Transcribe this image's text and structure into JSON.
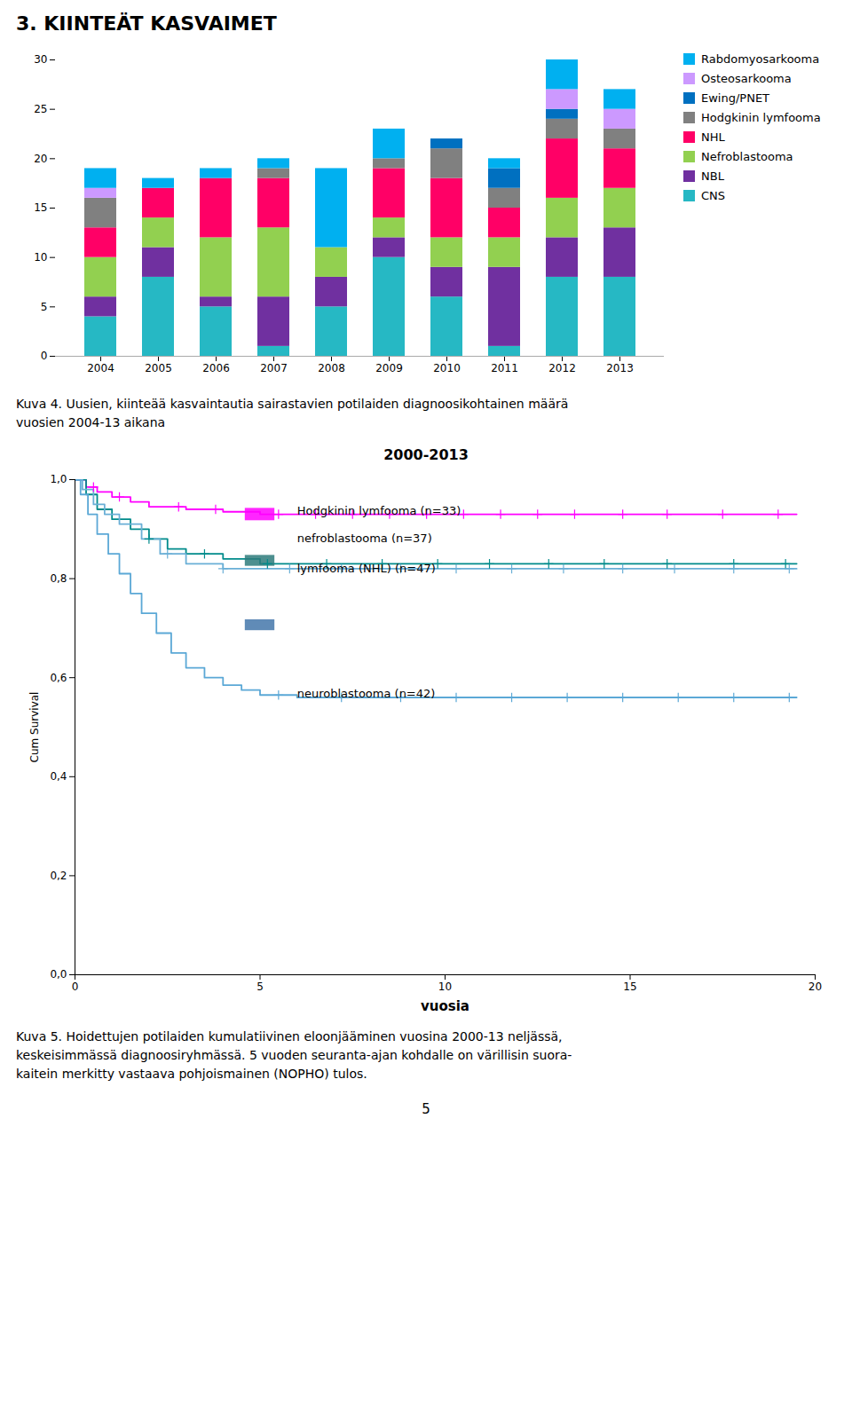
{
  "chart_data": [
    {
      "type": "bar",
      "title": "3. KIINTEÄT KASVAIMET",
      "caption": "Kuva 4. Uusien, kiinteää kasvaintautia sairastavien potilaiden diagnoosikohtainen määrä\nvuosien 2004-13 aikana",
      "stacked": true,
      "grid": false,
      "legend": "right",
      "categories": [
        "2004",
        "2005",
        "2006",
        "2007",
        "2008",
        "2009",
        "2010",
        "2011",
        "2012",
        "2013"
      ],
      "series": [
        {
          "name": "CNS",
          "color": "#26B8C4",
          "values": [
            4,
            8,
            5,
            1,
            5,
            10,
            6,
            1,
            8,
            8
          ]
        },
        {
          "name": "NBL",
          "color": "#7030A0",
          "values": [
            2,
            3,
            1,
            5,
            3,
            2,
            3,
            8,
            4,
            5
          ]
        },
        {
          "name": "Nefroblastooma",
          "color": "#92D050",
          "values": [
            4,
            3,
            6,
            7,
            3,
            2,
            3,
            3,
            4,
            4
          ]
        },
        {
          "name": "NHL",
          "color": "#FF0066",
          "values": [
            3,
            3,
            6,
            5,
            0,
            5,
            6,
            3,
            6,
            4
          ]
        },
        {
          "name": "Hodgkinin lymfooma",
          "color": "#808080",
          "values": [
            3,
            0,
            0,
            1,
            0,
            1,
            3,
            2,
            2,
            2
          ]
        },
        {
          "name": "Ewing/PNET",
          "color": "#0070C0",
          "values": [
            0,
            0,
            0,
            0,
            0,
            0,
            1,
            2,
            1,
            0
          ]
        },
        {
          "name": "Osteosarkooma",
          "color": "#CC99FF",
          "values": [
            1,
            0,
            0,
            0,
            0,
            0,
            0,
            0,
            2,
            2
          ]
        },
        {
          "name": "Rabdomyosarkooma",
          "color": "#00B0F0",
          "values": [
            2,
            1,
            1,
            1,
            8,
            3,
            0,
            1,
            3,
            2
          ]
        }
      ],
      "ylim": [
        0,
        30
      ],
      "yticks": [
        0,
        5,
        10,
        15,
        20,
        25,
        30
      ]
    },
    {
      "type": "step",
      "title": "2000-2013",
      "xlabel": "vuosia",
      "ylabel": "Cum Survival",
      "caption": "Kuva 5. Hoidettujen potilaiden kumulatiivinen eloonjääminen vuosina 2000-13 neljässä,\nkeskeisimmässä diagnoosiryhmässä. 5 vuoden seuranta-ajan kohdalle on värillisin suora-\nkaitein merkitty vastaava pohjoismainen (NOPHO) tulos.",
      "grid": false,
      "xlim": [
        0,
        20
      ],
      "xticks": [
        0,
        5,
        10,
        15,
        20
      ],
      "ylim": [
        0.0,
        1.0
      ],
      "yticks": [
        {
          "value": 0.0,
          "label": "0,0"
        },
        {
          "value": 0.2,
          "label": "0,2"
        },
        {
          "value": 0.4,
          "label": "0,4"
        },
        {
          "value": 0.6,
          "label": "0,6"
        },
        {
          "value": 0.8,
          "label": "0,8"
        },
        {
          "value": 1.0,
          "label": "1,0"
        }
      ],
      "series": [
        {
          "color": "#FF00FF",
          "x": [
            0,
            0.3,
            0.6,
            1.0,
            1.5,
            2.0,
            3.0,
            4.0,
            5.0,
            7.0,
            10.0,
            13.0,
            16.0,
            19.5
          ],
          "values": [
            1.0,
            0.985,
            0.975,
            0.965,
            0.955,
            0.945,
            0.94,
            0.935,
            0.93,
            0.93,
            0.93,
            0.93,
            0.93,
            0.93
          ],
          "censored": {
            "x": [
              0.5,
              1.2,
              2.8,
              3.8,
              5.5,
              6.5,
              7.5,
              8.5,
              9.5,
              10.5,
              11.5,
              12.5,
              13.5,
              14.8,
              16.0,
              17.5,
              19.0
            ],
            "values": [
              0.985,
              0.965,
              0.945,
              0.94,
              0.93,
              0.93,
              0.93,
              0.93,
              0.93,
              0.93,
              0.93,
              0.93,
              0.93,
              0.93,
              0.93,
              0.93,
              0.93
            ]
          }
        },
        {
          "color": "#008B8B",
          "x": [
            0,
            0.3,
            0.6,
            1.0,
            1.5,
            2.0,
            2.5,
            3.0,
            4.0,
            5.0,
            7.0,
            10.0,
            14.0,
            19.5
          ],
          "values": [
            1.0,
            0.97,
            0.94,
            0.92,
            0.9,
            0.88,
            0.86,
            0.85,
            0.84,
            0.83,
            0.83,
            0.83,
            0.83,
            0.83
          ],
          "censored": {
            "x": [
              2.0,
              3.5,
              5.2,
              6.8,
              8.3,
              9.8,
              11.2,
              12.8,
              14.3,
              16.0,
              17.8,
              19.2
            ],
            "values": [
              0.88,
              0.85,
              0.83,
              0.83,
              0.83,
              0.83,
              0.83,
              0.83,
              0.83,
              0.83,
              0.83,
              0.83
            ]
          }
        },
        {
          "color": "#6AAFD6",
          "x": [
            0,
            0.2,
            0.5,
            0.8,
            1.2,
            1.8,
            2.3,
            3.0,
            4.0,
            5.0,
            7.0,
            10.0,
            14.0,
            19.5
          ],
          "values": [
            1.0,
            0.98,
            0.95,
            0.93,
            0.91,
            0.88,
            0.85,
            0.83,
            0.82,
            0.82,
            0.82,
            0.82,
            0.82,
            0.82
          ],
          "censored": {
            "x": [
              2.5,
              4.0,
              5.8,
              7.2,
              8.8,
              10.3,
              11.8,
              13.2,
              14.8,
              16.2,
              17.8,
              19.3
            ],
            "values": [
              0.85,
              0.82,
              0.82,
              0.82,
              0.82,
              0.82,
              0.82,
              0.82,
              0.82,
              0.82,
              0.82,
              0.82
            ]
          }
        },
        {
          "color": "#5BA8D6",
          "x": [
            0,
            0.15,
            0.35,
            0.6,
            0.9,
            1.2,
            1.5,
            1.8,
            2.2,
            2.6,
            3.0,
            3.5,
            4.0,
            4.5,
            5.0,
            6.0,
            7.0,
            8.5,
            10.0,
            13.0,
            17.0,
            19.5
          ],
          "values": [
            1.0,
            0.97,
            0.93,
            0.89,
            0.85,
            0.81,
            0.77,
            0.73,
            0.69,
            0.65,
            0.62,
            0.6,
            0.585,
            0.575,
            0.565,
            0.56,
            0.56,
            0.56,
            0.56,
            0.56,
            0.56,
            0.56
          ],
          "censored": {
            "x": [
              5.5,
              7.2,
              8.8,
              10.3,
              11.8,
              13.3,
              14.8,
              16.3,
              17.8,
              19.3
            ],
            "values": [
              0.565,
              0.56,
              0.56,
              0.56,
              0.56,
              0.56,
              0.56,
              0.56,
              0.56,
              0.56
            ]
          }
        }
      ],
      "reference_boxes": [
        {
          "x1": 4.6,
          "x2": 5.4,
          "y1": 0.917,
          "y2": 0.942,
          "color": "#FF00FF"
        },
        {
          "x1": 4.6,
          "x2": 5.4,
          "y1": 0.825,
          "y2": 0.847,
          "color": "#2E7B7B"
        },
        {
          "x1": 4.6,
          "x2": 5.4,
          "y1": 0.695,
          "y2": 0.717,
          "color": "#4477AA"
        }
      ],
      "annotations": [
        {
          "text": "Hodgkinin lymfooma (n=33)",
          "x": 6.0,
          "y": 0.936
        },
        {
          "text": "nefroblastooma (n=37)",
          "x": 6.0,
          "y": 0.882
        },
        {
          "text": "lymfooma (NHL) (n=47)",
          "x": 6.0,
          "y": 0.82
        },
        {
          "text": "neuroblastooma (n=42)",
          "x": 6.0,
          "y": 0.568
        }
      ]
    }
  ],
  "page_number": "5"
}
